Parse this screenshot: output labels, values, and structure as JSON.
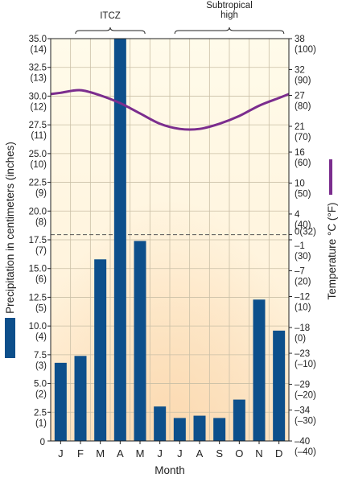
{
  "chart_data": {
    "type": "bar",
    "categories": [
      "J",
      "F",
      "M",
      "A",
      "M",
      "J",
      "J",
      "A",
      "S",
      "O",
      "N",
      "D"
    ],
    "precipitation_cm": [
      6.8,
      7.4,
      15.8,
      35.0,
      17.4,
      3.0,
      2.0,
      2.2,
      2.0,
      3.6,
      12.3,
      9.6
    ],
    "temperature_c": [
      27.5,
      28.0,
      27.0,
      25.5,
      23.5,
      21.5,
      20.5,
      20.5,
      21.5,
      23.0,
      25.0,
      26.5
    ],
    "temperature_line_color": "#7b2d8e",
    "bar_color": "#0d4f8b",
    "xlabel": "Month",
    "ylabel_left": "Precipitation in centimeters (inches)",
    "ylabel_right": "Temperature °C (°F)",
    "ylim_left": [
      0,
      35
    ],
    "ylim_right": [
      -40,
      38
    ],
    "left_ticks": [
      {
        "v": 35.0,
        "cm": "35.0",
        "in": "(14)"
      },
      {
        "v": 32.5,
        "cm": "32.5",
        "in": "(13)"
      },
      {
        "v": 30.0,
        "cm": "30.0",
        "in": "(12)"
      },
      {
        "v": 27.5,
        "cm": "27.5",
        "in": "(11)"
      },
      {
        "v": 25.0,
        "cm": "25.0",
        "in": "(10)"
      },
      {
        "v": 22.5,
        "cm": "22.5",
        "in": "(9)"
      },
      {
        "v": 20.0,
        "cm": "20.0",
        "in": "(8)"
      },
      {
        "v": 17.5,
        "cm": "17.5",
        "in": "(7)"
      },
      {
        "v": 15.0,
        "cm": "15.0",
        "in": "(6)"
      },
      {
        "v": 12.5,
        "cm": "12.5",
        "in": "(5)"
      },
      {
        "v": 10.0,
        "cm": "10.0",
        "in": "(4)"
      },
      {
        "v": 7.5,
        "cm": "7.5",
        "in": "(3)"
      },
      {
        "v": 5.0,
        "cm": "5.0",
        "in": "(2)"
      },
      {
        "v": 2.5,
        "cm": "2.5",
        "in": "(1)"
      },
      {
        "v": 0,
        "cm": "0",
        "in": ""
      }
    ],
    "right_ticks": [
      {
        "v": 38,
        "c": "38",
        "f": "(100)"
      },
      {
        "v": 32,
        "c": "32",
        "f": "(90)"
      },
      {
        "v": 27,
        "c": "27",
        "f": "(80)"
      },
      {
        "v": 21,
        "c": "21",
        "f": "(70)"
      },
      {
        "v": 16,
        "c": "16",
        "f": "(60)"
      },
      {
        "v": 10,
        "c": "10",
        "f": "(50)"
      },
      {
        "v": 4,
        "c": "4",
        "f": "(40)"
      },
      {
        "v": 0,
        "c": "0(32)",
        "f": ""
      },
      {
        "v": -1,
        "c": "–1",
        "f": "(30)"
      },
      {
        "v": -7,
        "c": "–7",
        "f": "(20)"
      },
      {
        "v": -12,
        "c": "–12",
        "f": "(10)"
      },
      {
        "v": -18,
        "c": "–18",
        "f": "(0)"
      },
      {
        "v": -23,
        "c": "–23",
        "f": "(–10)"
      },
      {
        "v": -29,
        "c": "–29",
        "f": "(–20)"
      },
      {
        "v": -34,
        "c": "–34",
        "f": "(–30)"
      },
      {
        "v": -40,
        "c": "–40",
        "f": "(–40)"
      }
    ],
    "freezing_line_c": 0,
    "annotations": [
      {
        "label_lines": [
          "ITCZ"
        ],
        "from": 1,
        "to": 4
      },
      {
        "label_lines": [
          "Subtropical",
          "high"
        ],
        "from": 6,
        "to": 11
      }
    ],
    "grid": true
  }
}
